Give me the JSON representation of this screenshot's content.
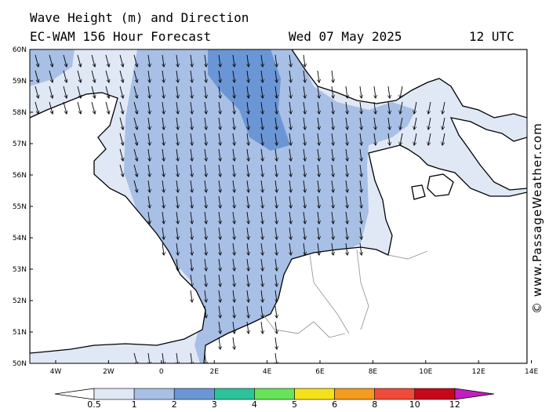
{
  "header": {
    "title_line1": "Wave Height (m) and Direction",
    "title_line2": "EC-WAM 156 Hour Forecast",
    "date": "Wed 07 May 2025",
    "time": "12 UTC"
  },
  "credit": "© www.PassageWeather.com",
  "axes": {
    "lat_labels": [
      "60N",
      "59N",
      "58N",
      "57N",
      "56N",
      "55N",
      "54N",
      "53N",
      "52N",
      "51N",
      "50N"
    ],
    "lon_labels": [
      "4W",
      "2W",
      "0",
      "2E",
      "4E",
      "6E",
      "8E",
      "10E",
      "12E",
      "14E"
    ]
  },
  "legend": {
    "labels": [
      "0.5",
      "1",
      "2",
      "3",
      "4",
      "5",
      "6",
      "8",
      "10",
      "12"
    ],
    "colors": [
      "#ffffff",
      "#e0e8f6",
      "#a8c0e6",
      "#6b96d6",
      "#2cc39a",
      "#66e35a",
      "#f3e21a",
      "#f39a1f",
      "#ef4a3a",
      "#c6081d",
      "#c21ec2"
    ]
  },
  "field": {
    "arrow_direction": "south",
    "land_color": "#ffffff",
    "band_colors": {
      "light": "#e0e8f6",
      "mid": "#a8c0e6",
      "dark": "#6b96d6"
    }
  }
}
